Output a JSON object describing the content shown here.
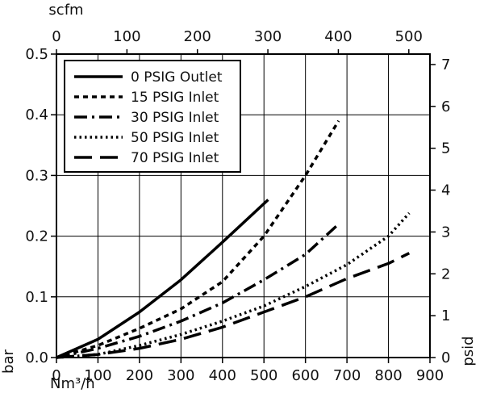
{
  "chart_data": {
    "type": "line",
    "axes": {
      "bottom": {
        "label": "Nm³/h",
        "range": [
          0,
          900
        ],
        "ticks": [
          0,
          100,
          200,
          300,
          400,
          500,
          600,
          700,
          800,
          900
        ],
        "tick_labels": [
          "0",
          "100",
          "200",
          "300",
          "400",
          "500",
          "600",
          "700",
          "800",
          "900"
        ]
      },
      "top": {
        "label": "scfm",
        "range": [
          0,
          530
        ],
        "ticks": [
          0,
          100,
          200,
          300,
          400,
          500
        ],
        "tick_labels": [
          "0",
          "100",
          "200",
          "300",
          "400",
          "500"
        ]
      },
      "left": {
        "label": "bar",
        "range": [
          0,
          0.5
        ],
        "ticks": [
          0,
          0.1,
          0.2,
          0.3,
          0.4,
          0.5
        ],
        "tick_labels": [
          "0.0",
          "0.1",
          "0.2",
          "0.3",
          "0.4",
          "0.5"
        ]
      },
      "right": {
        "label": "psid",
        "range": [
          0,
          7.25
        ],
        "ticks": [
          0,
          1,
          2,
          3,
          4,
          5,
          6,
          7
        ],
        "tick_labels": [
          "0",
          "1",
          "2",
          "3",
          "4",
          "5",
          "6",
          "7"
        ]
      }
    },
    "grid": true,
    "legend_position": "top-left",
    "series": [
      {
        "name": "0 PSIG Outlet",
        "line_style": "solid",
        "x": [
          0,
          100,
          200,
          300,
          400,
          510
        ],
        "y": [
          0,
          0.03,
          0.075,
          0.128,
          0.19,
          0.26
        ]
      },
      {
        "name": "15 PSIG Inlet",
        "line_style": "short-dash",
        "x": [
          0,
          100,
          200,
          300,
          400,
          500,
          600,
          680
        ],
        "y": [
          0,
          0.02,
          0.048,
          0.08,
          0.125,
          0.2,
          0.3,
          0.39
        ]
      },
      {
        "name": "30 PSIG Inlet",
        "line_style": "dash-dot",
        "x": [
          0,
          100,
          200,
          300,
          400,
          500,
          600,
          680
        ],
        "y": [
          0,
          0.015,
          0.035,
          0.06,
          0.09,
          0.128,
          0.17,
          0.22
        ]
      },
      {
        "name": "50 PSIG Inlet",
        "line_style": "dotted",
        "x": [
          0,
          100,
          200,
          300,
          400,
          500,
          600,
          700,
          800,
          850
        ],
        "y": [
          0,
          0.005,
          0.02,
          0.038,
          0.06,
          0.085,
          0.117,
          0.153,
          0.2,
          0.238
        ]
      },
      {
        "name": "70 PSIG Inlet",
        "line_style": "long-dash",
        "x": [
          0,
          100,
          200,
          300,
          400,
          500,
          600,
          700,
          800,
          850
        ],
        "y": [
          0,
          0.005,
          0.015,
          0.03,
          0.05,
          0.075,
          0.1,
          0.13,
          0.155,
          0.172
        ]
      }
    ]
  }
}
